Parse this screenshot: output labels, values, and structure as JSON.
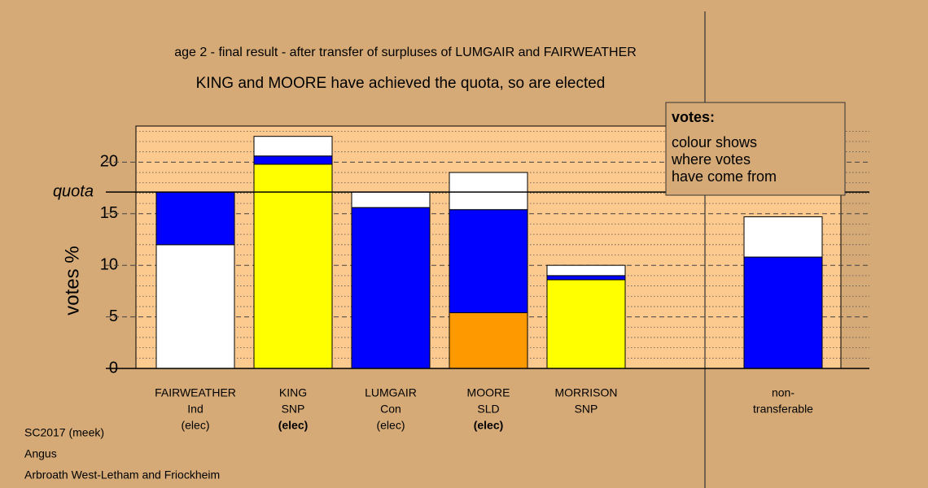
{
  "chart_data": {
    "type": "stacked-bar",
    "title": "age 2 - final result - after transfer of surpluses of LUMGAIR and FAIRWEATHER",
    "subtitle": "KING and MOORE have achieved the quota, so are elected",
    "y_label": "votes %",
    "quota_label": "quota",
    "quota": 17.1,
    "ylim": [
      0,
      23.5
    ],
    "yticks": [
      0,
      5,
      10,
      15,
      20
    ],
    "minor_yticks": [
      1,
      2,
      3,
      4,
      6,
      7,
      8,
      9,
      11,
      12,
      13,
      14,
      16,
      17,
      18,
      19,
      21,
      22,
      23
    ],
    "bars": [
      {
        "lines": [
          "FAIRWEATHER",
          "Ind",
          "(elec)"
        ],
        "elected": false,
        "segments": [
          {
            "color": "#ffffff",
            "value": 12.0
          },
          {
            "color": "#0000ff",
            "value": 5.1
          }
        ]
      },
      {
        "lines": [
          "KING",
          "SNP",
          "(elec)"
        ],
        "elected": true,
        "segments": [
          {
            "color": "#ffff00",
            "value": 19.8
          },
          {
            "color": "#0000ff",
            "value": 0.8
          },
          {
            "color": "#ffffff",
            "value": 1.9
          }
        ]
      },
      {
        "lines": [
          "LUMGAIR",
          "Con",
          "(elec)"
        ],
        "elected": false,
        "segments": [
          {
            "color": "#0000ff",
            "value": 15.6
          },
          {
            "color": "#ffffff",
            "value": 1.5
          }
        ]
      },
      {
        "lines": [
          "MOORE",
          "SLD",
          "(elec)"
        ],
        "elected": true,
        "segments": [
          {
            "color": "#ff9900",
            "value": 5.4
          },
          {
            "color": "#0000ff",
            "value": 10.0
          },
          {
            "color": "#ffffff",
            "value": 3.6
          }
        ]
      },
      {
        "lines": [
          "MORRISON",
          "SNP"
        ],
        "elected": false,
        "segments": [
          {
            "color": "#ffff00",
            "value": 8.6
          },
          {
            "color": "#0000ff",
            "value": 0.4
          },
          {
            "color": "#ffffff",
            "value": 1.0
          }
        ]
      },
      {
        "lines": [
          "non-",
          "transferable"
        ],
        "elected": false,
        "segments": [
          {
            "color": "#0000ff",
            "value": 10.8
          },
          {
            "color": "#ffffff",
            "value": 3.9
          }
        ]
      }
    ],
    "legend": {
      "heading": "votes:",
      "lines": [
        "colour shows",
        "where votes",
        "have come from"
      ]
    },
    "footer": [
      "SC2017 (meek)",
      "Angus",
      "Arbroath West-Letham and Friockheim"
    ]
  }
}
